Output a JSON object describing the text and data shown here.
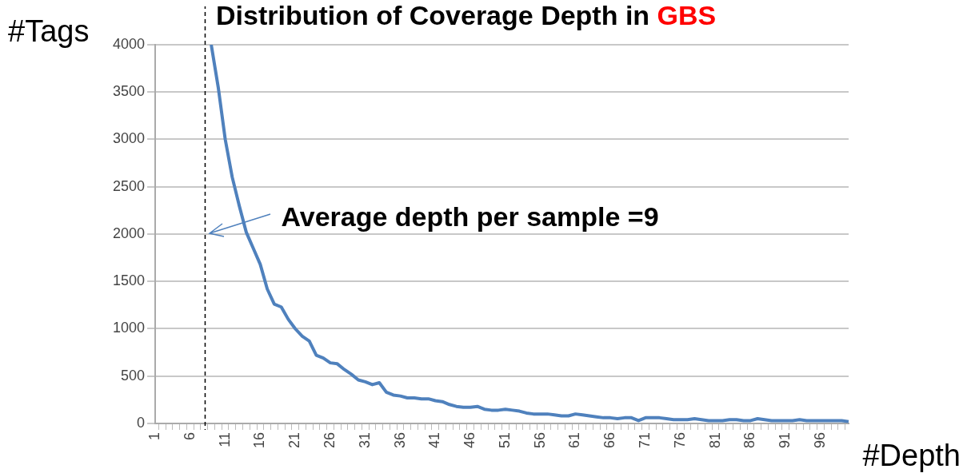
{
  "chart_data": {
    "type": "line",
    "title": "Distribution of Coverage Depth in GBS",
    "xlabel": "#Depth",
    "ylabel": "#Tags",
    "categories": [
      "1",
      null,
      null,
      null,
      null,
      "6",
      null,
      null,
      null,
      null,
      "11",
      null,
      null,
      null,
      null,
      "16",
      null,
      null,
      null,
      null,
      "21",
      null,
      null,
      null,
      null,
      "26",
      null,
      null,
      null,
      null,
      "31",
      null,
      null,
      null,
      null,
      "36",
      null,
      null,
      null,
      null,
      "41",
      null,
      null,
      null,
      null,
      "46",
      null,
      null,
      null,
      null,
      "51",
      null,
      null,
      null,
      null,
      "56",
      null,
      null,
      null,
      null,
      "61",
      null,
      null,
      null,
      null,
      "66",
      null,
      null,
      null,
      null,
      "71",
      null,
      null,
      null,
      null,
      "76",
      null,
      null,
      null,
      null,
      "81",
      null,
      null,
      null,
      null,
      "86",
      null,
      null,
      null,
      null,
      "91",
      null,
      null,
      null,
      null,
      "96",
      null,
      null,
      null,
      null
    ],
    "series": [
      {
        "color": "#4f81bd",
        "values": [
          null,
          null,
          null,
          null,
          null,
          null,
          null,
          null,
          4000,
          3550,
          3000,
          2600,
          2300,
          2020,
          1850,
          1680,
          1420,
          1260,
          1230,
          1100,
          1000,
          920,
          870,
          720,
          690,
          640,
          630,
          570,
          520,
          460,
          440,
          410,
          430,
          330,
          300,
          290,
          270,
          270,
          260,
          260,
          240,
          230,
          200,
          180,
          170,
          170,
          180,
          150,
          140,
          140,
          150,
          140,
          130,
          110,
          100,
          100,
          100,
          90,
          80,
          80,
          100,
          90,
          80,
          70,
          60,
          60,
          50,
          60,
          60,
          30,
          60,
          60,
          60,
          50,
          40,
          40,
          40,
          50,
          40,
          30,
          30,
          30,
          40,
          40,
          30,
          30,
          50,
          40,
          30,
          30,
          30,
          30,
          40,
          30,
          30,
          30,
          30,
          30,
          30,
          20
        ]
      }
    ],
    "ylim": [
      0,
      4000
    ],
    "yticks": [
      0,
      500,
      1000,
      1500,
      2000,
      2500,
      3000,
      3500,
      4000
    ],
    "grid": "y",
    "legend": false,
    "annotations": [
      "Average depth per sample =9"
    ]
  }
}
